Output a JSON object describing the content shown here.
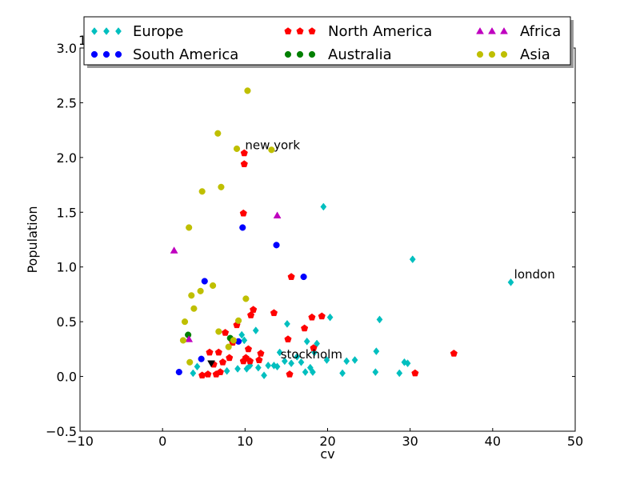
{
  "chart_data": {
    "type": "scatter",
    "title": "",
    "xlabel": "cv",
    "ylabel": "Population",
    "xlim": [
      -10,
      50
    ],
    "ylim": [
      -0.5,
      3.0
    ],
    "x_ticks": [
      "−10",
      "0",
      "10",
      "20",
      "30",
      "40",
      "50"
    ],
    "x_tick_values": [
      -10,
      0,
      10,
      20,
      30,
      40,
      50
    ],
    "y_ticks": [
      "−0.5",
      "0.0",
      "0.5",
      "1.0",
      "1.5",
      "2.0",
      "2.5",
      "3.0"
    ],
    "y_tick_values": [
      -0.5,
      0.0,
      0.5,
      1.0,
      1.5,
      2.0,
      2.5,
      3.0
    ],
    "grid": false,
    "legend_position": "top",
    "offset_label": "1",
    "series": [
      {
        "name": "Europe",
        "color": "#00bfbf",
        "marker": "diamond",
        "points": [
          [
            19.5,
            1.55
          ],
          [
            30.3,
            1.07
          ],
          [
            42.2,
            0.86
          ],
          [
            26.3,
            0.52
          ],
          [
            20.3,
            0.54
          ],
          [
            15.1,
            0.48
          ],
          [
            11.3,
            0.42
          ],
          [
            9.6,
            0.38
          ],
          [
            25.9,
            0.23
          ],
          [
            14.2,
            0.22
          ],
          [
            17.5,
            0.32
          ],
          [
            18.7,
            0.3
          ],
          [
            16.3,
            0.18
          ],
          [
            19.9,
            0.15
          ],
          [
            22.3,
            0.14
          ],
          [
            23.3,
            0.15
          ],
          [
            29.3,
            0.13
          ],
          [
            29.7,
            0.12
          ],
          [
            15.6,
            0.12
          ],
          [
            13.5,
            0.1
          ],
          [
            12.8,
            0.1
          ],
          [
            13.9,
            0.09
          ],
          [
            11.6,
            0.08
          ],
          [
            9.1,
            0.07
          ],
          [
            10.2,
            0.07
          ],
          [
            7.8,
            0.05
          ],
          [
            4.2,
            0.09
          ],
          [
            3.7,
            0.03
          ],
          [
            17.3,
            0.04
          ],
          [
            18.2,
            0.04
          ],
          [
            21.8,
            0.03
          ],
          [
            25.8,
            0.04
          ],
          [
            28.7,
            0.03
          ],
          [
            12.3,
            0.01
          ],
          [
            16.8,
            0.13
          ],
          [
            14.8,
            0.14
          ],
          [
            10.6,
            0.1
          ],
          [
            9.9,
            0.33
          ],
          [
            17.9,
            0.08
          ],
          [
            18.4,
            0.22
          ]
        ]
      },
      {
        "name": "South America",
        "color": "#0000ff",
        "marker": "circle",
        "points": [
          [
            9.7,
            1.36
          ],
          [
            13.8,
            1.2
          ],
          [
            5.1,
            0.87
          ],
          [
            17.1,
            0.91
          ],
          [
            9.2,
            0.32
          ],
          [
            4.7,
            0.16
          ],
          [
            2.0,
            0.04
          ]
        ]
      },
      {
        "name": "North America",
        "color": "#ff0000",
        "marker": "pentagon",
        "points": [
          [
            9.9,
            2.04
          ],
          [
            9.9,
            1.94
          ],
          [
            9.8,
            1.49
          ],
          [
            15.6,
            0.91
          ],
          [
            11.0,
            0.61
          ],
          [
            13.5,
            0.58
          ],
          [
            10.7,
            0.56
          ],
          [
            18.1,
            0.54
          ],
          [
            19.3,
            0.55
          ],
          [
            17.2,
            0.44
          ],
          [
            9.0,
            0.47
          ],
          [
            7.6,
            0.4
          ],
          [
            8.5,
            0.31
          ],
          [
            10.4,
            0.25
          ],
          [
            11.9,
            0.21
          ],
          [
            35.3,
            0.21
          ],
          [
            5.7,
            0.22
          ],
          [
            6.8,
            0.22
          ],
          [
            10.1,
            0.17
          ],
          [
            10.6,
            0.14
          ],
          [
            11.7,
            0.15
          ],
          [
            9.8,
            0.14
          ],
          [
            6.2,
            0.11
          ],
          [
            7.3,
            0.13
          ],
          [
            8.1,
            0.17
          ],
          [
            4.8,
            0.01
          ],
          [
            5.5,
            0.02
          ],
          [
            6.5,
            0.02
          ],
          [
            7.0,
            0.04
          ],
          [
            15.4,
            0.02
          ],
          [
            30.6,
            0.03
          ],
          [
            18.3,
            0.26
          ],
          [
            15.2,
            0.34
          ]
        ]
      },
      {
        "name": "Australia",
        "color": "#008000",
        "marker": "circle",
        "points": [
          [
            3.1,
            0.38
          ],
          [
            8.2,
            0.35
          ]
        ]
      },
      {
        "name": "Africa",
        "color": "#bf00bf",
        "marker": "triangle",
        "points": [
          [
            1.4,
            1.15
          ],
          [
            13.9,
            1.47
          ],
          [
            3.2,
            0.34
          ]
        ]
      },
      {
        "name": "Asia",
        "color": "#bfbf00",
        "marker": "circle",
        "points": [
          [
            10.3,
            2.61
          ],
          [
            6.7,
            2.22
          ],
          [
            9.0,
            2.08
          ],
          [
            13.2,
            2.07
          ],
          [
            7.1,
            1.73
          ],
          [
            4.8,
            1.69
          ],
          [
            3.2,
            1.36
          ],
          [
            6.1,
            0.83
          ],
          [
            4.6,
            0.78
          ],
          [
            3.5,
            0.74
          ],
          [
            10.1,
            0.71
          ],
          [
            3.8,
            0.62
          ],
          [
            2.7,
            0.5
          ],
          [
            9.2,
            0.51
          ],
          [
            6.8,
            0.41
          ],
          [
            2.5,
            0.33
          ],
          [
            8.6,
            0.33
          ],
          [
            8.0,
            0.27
          ],
          [
            3.3,
            0.13
          ]
        ]
      },
      {
        "name": "",
        "color": "#000000",
        "marker": "triangle-down",
        "points": [
          [
            5.9,
            0.12
          ]
        ]
      }
    ],
    "annotations": [
      {
        "text": "new york",
        "x": 10.0,
        "y": 2.04
      },
      {
        "text": "london",
        "x": 42.6,
        "y": 0.86
      },
      {
        "text": "stockholm",
        "x": 14.3,
        "y": 0.13
      }
    ]
  }
}
